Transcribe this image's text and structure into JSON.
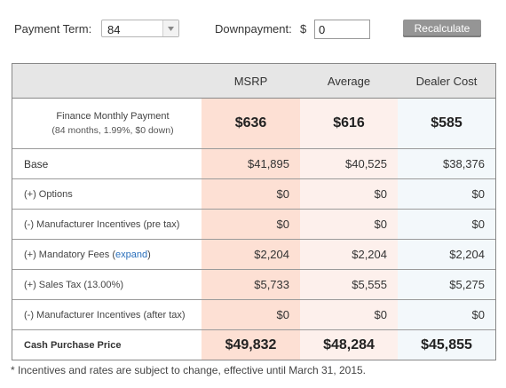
{
  "controls": {
    "payment_term_label": "Payment Term:",
    "payment_term_value": "84",
    "downpayment_label": "Downpayment:",
    "currency_symbol": "$",
    "downpayment_value": "0",
    "recalculate_label": "Recalculate"
  },
  "table": {
    "headers": {
      "msrp": "MSRP",
      "average": "Average",
      "dealer_cost": "Dealer Cost"
    },
    "finance": {
      "label": "Finance Monthly Payment",
      "sublabel": "(84 months, 1.99%, $0 down)",
      "msrp": "$636",
      "average": "$616",
      "dealer_cost": "$585"
    },
    "rows": [
      {
        "label": "Base",
        "msrp": "$41,895",
        "average": "$40,525",
        "dealer_cost": "$38,376"
      },
      {
        "label": "(+) Options",
        "msrp": "$0",
        "average": "$0",
        "dealer_cost": "$0"
      },
      {
        "label": "(-) Manufacturer Incentives (pre tax)",
        "msrp": "$0",
        "average": "$0",
        "dealer_cost": "$0"
      },
      {
        "label": "(+) Mandatory Fees",
        "link": "expand",
        "msrp": "$2,204",
        "average": "$2,204",
        "dealer_cost": "$2,204"
      },
      {
        "label": "(+) Sales Tax (13.00%)",
        "msrp": "$5,733",
        "average": "$5,555",
        "dealer_cost": "$5,275"
      },
      {
        "label": "(-) Manufacturer Incentives (after tax)",
        "msrp": "$0",
        "average": "$0",
        "dealer_cost": "$0"
      }
    ],
    "cash": {
      "label": "Cash Purchase Price",
      "msrp": "$49,832",
      "average": "$48,284",
      "dealer_cost": "$45,855"
    }
  },
  "footnote": "* Incentives and rates are subject to change, effective until March 31, 2015.",
  "colors": {
    "msrp_column": "#fde0d4",
    "average_column": "#fdf0ec",
    "dealer_column": "#f3f8fb",
    "header_bg": "#e6e6e6",
    "recalculate_bg": "#959595",
    "link": "#2a6fbb"
  },
  "icons": {
    "select_arrow": "chevron-down-icon"
  }
}
